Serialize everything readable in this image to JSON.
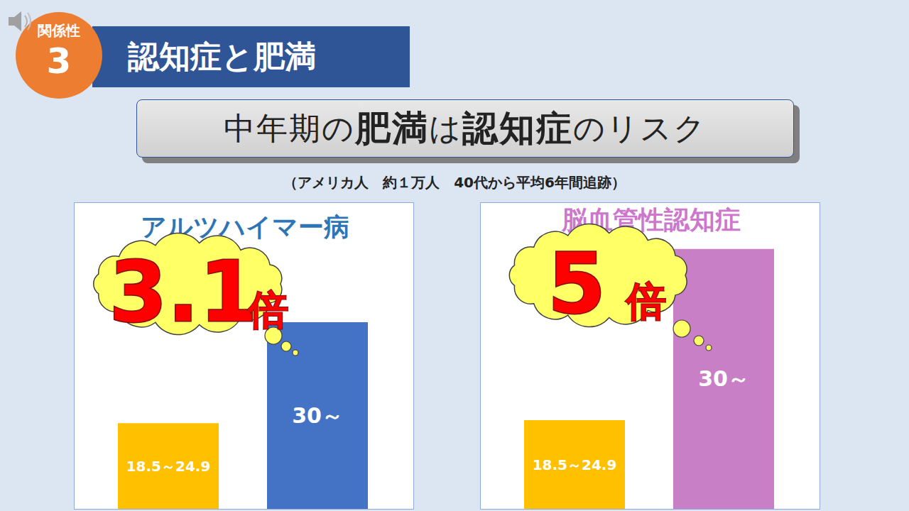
{
  "header": {
    "badge_label": "関係性",
    "badge_number": "3",
    "title": "認知症と肥満"
  },
  "subtitle": "中年期の肥満は認知症のリスク",
  "subtitle_emphasis": [
    "肥満",
    "認知症"
  ],
  "note": "（アメリカ人　約１万人　40代から平均6年間追跡）",
  "chart_data": [
    {
      "type": "bar",
      "title": "アルツハイマー病",
      "categories": [
        "18.5～24.9",
        "30～"
      ],
      "values": [
        28,
        61
      ],
      "colors": [
        "#ffc000",
        "#4472c4"
      ],
      "ylim": [
        0,
        100
      ],
      "tick_labels": false,
      "grid": false,
      "annotation": "3.1倍"
    },
    {
      "type": "bar",
      "title": "脳血管性認知症",
      "categories": [
        "18.5～24.9",
        "30～"
      ],
      "values": [
        29,
        85
      ],
      "colors": [
        "#ffc000",
        "#c97fc6"
      ],
      "ylim": [
        0,
        100
      ],
      "tick_labels": false,
      "grid": false,
      "annotation": "5倍"
    }
  ]
}
